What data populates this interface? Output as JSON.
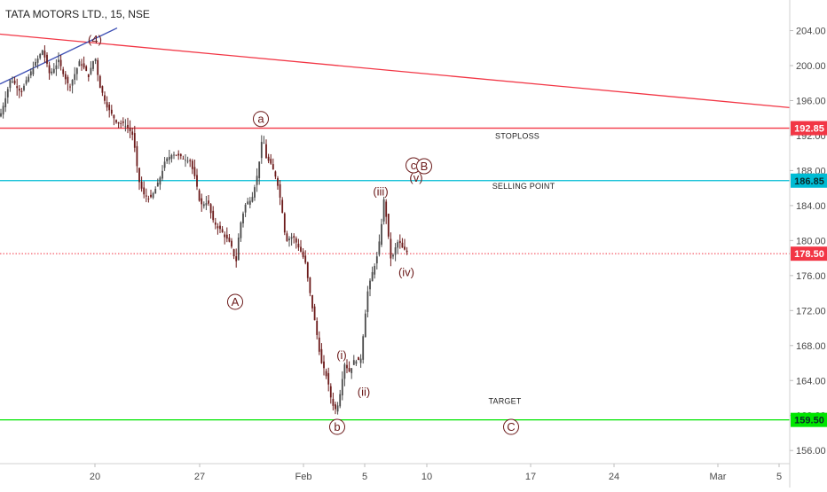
{
  "chart_data": {
    "type": "candlestick",
    "title": "TATA MOTORS LTD., 15, NSE",
    "y_axis": {
      "range": [
        154.5,
        207.5
      ],
      "ticks": [
        156,
        160,
        164,
        168,
        172,
        176,
        180,
        184,
        188,
        192,
        196,
        200,
        204
      ],
      "tick_labels": [
        "156.00",
        "160.00",
        "164.00",
        "168.00",
        "172.00",
        "176.00",
        "180.00",
        "184.00",
        "188.00",
        "192.00",
        "196.00",
        "200.00",
        "204.00"
      ]
    },
    "x_axis": {
      "range": [
        0,
        932
      ],
      "tick_labels": [
        {
          "label": "20",
          "x": 107
        },
        {
          "label": "27",
          "x": 225
        },
        {
          "label": "Feb",
          "x": 342
        },
        {
          "label": "5",
          "x": 411
        },
        {
          "label": "10",
          "x": 481
        },
        {
          "label": "17",
          "x": 598
        },
        {
          "label": "24",
          "x": 692
        },
        {
          "label": "Mar",
          "x": 809
        },
        {
          "label": "5",
          "x": 878
        }
      ]
    },
    "price_path": [
      [
        0,
        194.2
      ],
      [
        12,
        198.5
      ],
      [
        24,
        197.0
      ],
      [
        36,
        199.5
      ],
      [
        48,
        201.8
      ],
      [
        56,
        199.0
      ],
      [
        66,
        200.5
      ],
      [
        78,
        197.5
      ],
      [
        90,
        200.5
      ],
      [
        100,
        198.8
      ],
      [
        107,
        201.2
      ],
      [
        112,
        197.8
      ],
      [
        122,
        195.0
      ],
      [
        132,
        193.5
      ],
      [
        142,
        193.2
      ],
      [
        150,
        192.0
      ],
      [
        156,
        187.0
      ],
      [
        162,
        185.2
      ],
      [
        170,
        184.8
      ],
      [
        178,
        186.5
      ],
      [
        186,
        189.0
      ],
      [
        194,
        190.0
      ],
      [
        204,
        189.5
      ],
      [
        214,
        189.2
      ],
      [
        220,
        187.0
      ],
      [
        226,
        184.0
      ],
      [
        234,
        184.5
      ],
      [
        240,
        182.2
      ],
      [
        250,
        181.0
      ],
      [
        260,
        179.5
      ],
      [
        266,
        177.5
      ],
      [
        270,
        181.5
      ],
      [
        276,
        184.0
      ],
      [
        284,
        185.0
      ],
      [
        290,
        187.5
      ],
      [
        296,
        192.0
      ],
      [
        300,
        189.5
      ],
      [
        306,
        188.5
      ],
      [
        312,
        187.0
      ],
      [
        318,
        183.5
      ],
      [
        322,
        180.0
      ],
      [
        330,
        180.5
      ],
      [
        338,
        179.0
      ],
      [
        344,
        177.5
      ],
      [
        350,
        173.5
      ],
      [
        356,
        170.0
      ],
      [
        362,
        166.0
      ],
      [
        368,
        164.5
      ],
      [
        374,
        161.5
      ],
      [
        379,
        160.5
      ],
      [
        384,
        163.0
      ],
      [
        388,
        166.0
      ],
      [
        394,
        165.0
      ],
      [
        400,
        166.5
      ],
      [
        406,
        166.0
      ],
      [
        410,
        170.0
      ],
      [
        414,
        174.0
      ],
      [
        420,
        176.5
      ],
      [
        426,
        178.5
      ],
      [
        430,
        182.0
      ],
      [
        433,
        185.0
      ],
      [
        437,
        181.0
      ],
      [
        441,
        177.5
      ],
      [
        445,
        179.0
      ],
      [
        449,
        180.0
      ],
      [
        454,
        179.0
      ],
      [
        460,
        178.6
      ]
    ],
    "horizontal_levels": [
      {
        "price": 192.85,
        "label": "192.85",
        "color": "#f23645",
        "style": "solid",
        "annotation": "STOPLOSS"
      },
      {
        "price": 186.85,
        "label": "186.85",
        "color": "#00bcd4",
        "style": "solid",
        "annotation": "SELLING POINT"
      },
      {
        "price": 178.5,
        "label": "178.50",
        "color": "#f23645",
        "style": "dotted",
        "annotation": ""
      },
      {
        "price": 159.5,
        "label": "159.50",
        "color": "#00e600",
        "style": "solid",
        "annotation": "TARGET"
      }
    ],
    "trend_lines": [
      {
        "color": "#f23645",
        "from": [
          0,
          203.6
        ],
        "to": [
          890,
          195.2
        ]
      },
      {
        "color": "#3f51b5",
        "from": [
          0,
          197.9
        ],
        "to": [
          132,
          204.3
        ]
      }
    ],
    "wave_labels": [
      {
        "text": "(4)",
        "x": 107,
        "price": 203.0,
        "circled": false
      },
      {
        "text": "a",
        "x": 294,
        "price": 193.9,
        "circled": true
      },
      {
        "text": "A",
        "x": 265,
        "price": 173.0,
        "circled": true
      },
      {
        "text": "(iii)",
        "x": 429,
        "price": 185.6,
        "circled": false
      },
      {
        "text": "(iv)",
        "x": 458,
        "price": 176.4,
        "circled": false
      },
      {
        "text": "(i)",
        "x": 385,
        "price": 166.9,
        "circled": false
      },
      {
        "text": "(ii)",
        "x": 410,
        "price": 162.7,
        "circled": false
      },
      {
        "text": "b",
        "x": 380,
        "price": 158.7,
        "circled": true
      },
      {
        "text": "c",
        "x": 466,
        "price": 188.6,
        "circled": true
      },
      {
        "text": "(v)",
        "x": 469,
        "price": 187.2,
        "circled": false
      },
      {
        "text": "B",
        "x": 478,
        "price": 188.5,
        "circled": true
      },
      {
        "text": "C",
        "x": 576,
        "price": 158.7,
        "circled": true
      }
    ],
    "colors": {
      "up": "#4a4a4a",
      "down": "#6b1a1a",
      "axis_bg": "#ffffff"
    }
  }
}
